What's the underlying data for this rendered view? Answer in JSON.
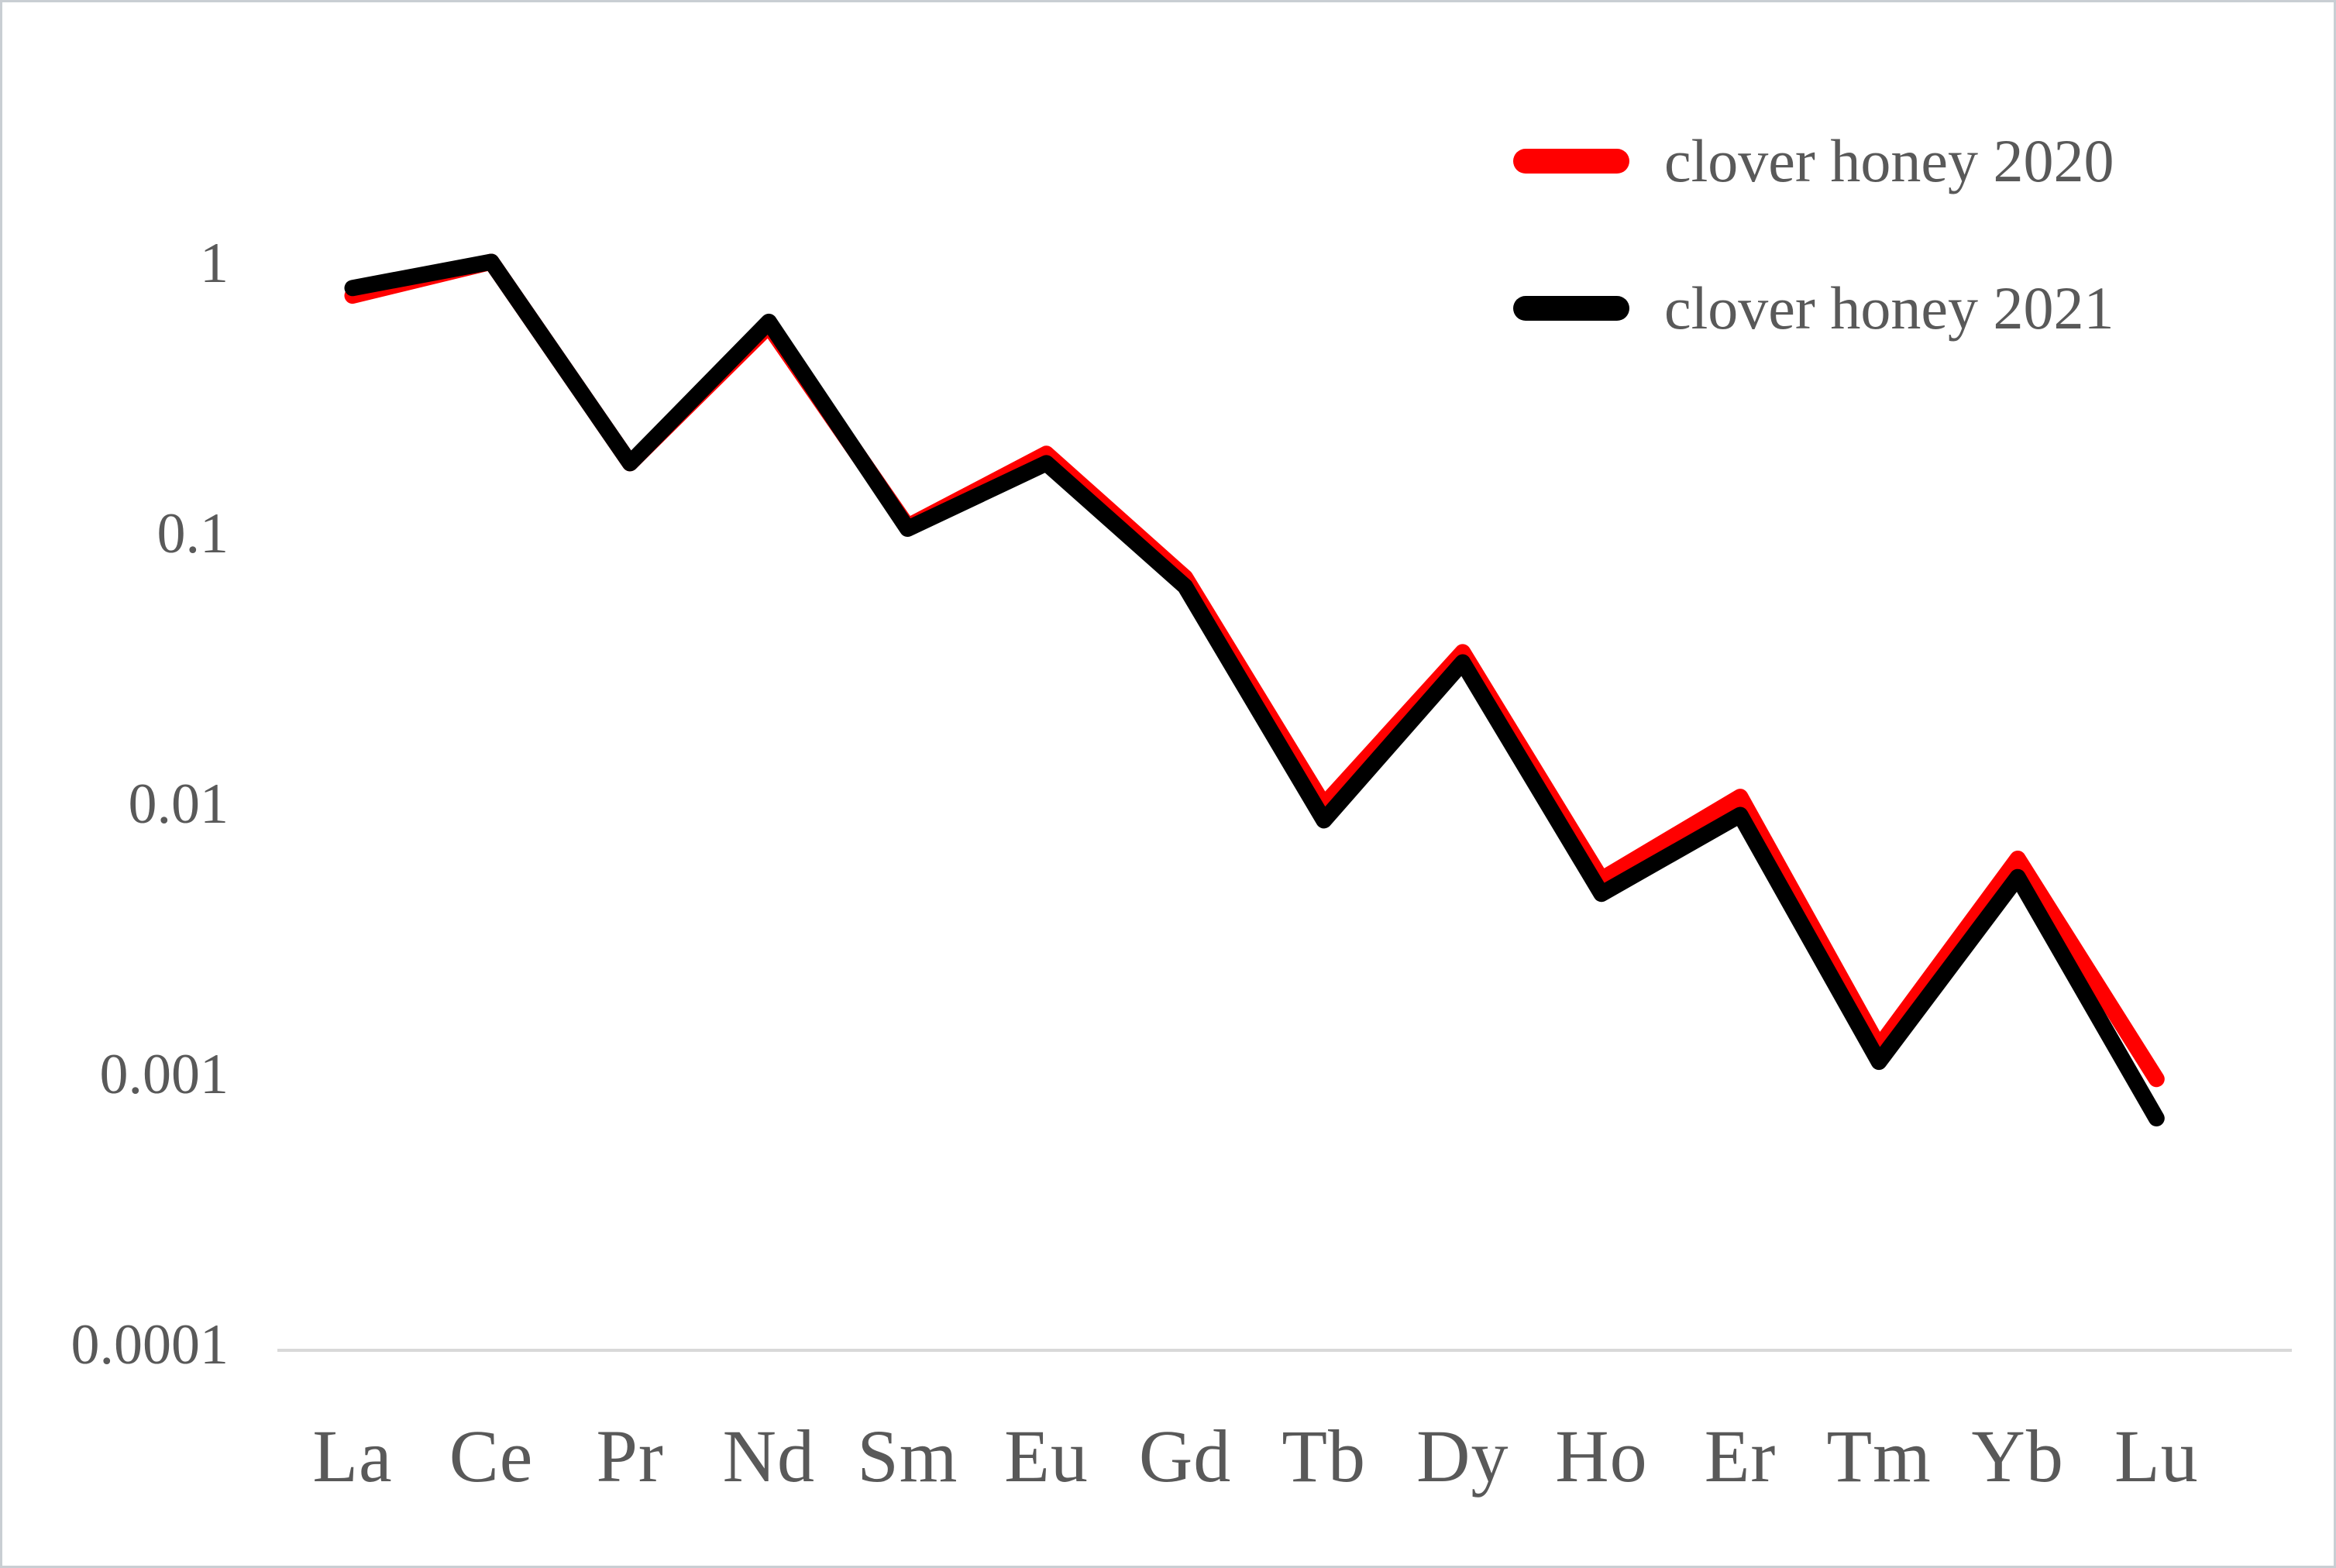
{
  "frame": {
    "background": "#ffffff",
    "border_color": "#c9ced3"
  },
  "legend": {
    "position": "top-right",
    "text_color": "#595959",
    "items": [
      {
        "label": "clover honey 2020",
        "color": "#ff0000"
      },
      {
        "label": "clover honey 2021",
        "color": "#000000"
      }
    ]
  },
  "chart_data": {
    "type": "line",
    "title": "",
    "xlabel": "",
    "ylabel": "",
    "categories": [
      "La",
      "Ce",
      "Pr",
      "Nd",
      "Sm",
      "Eu",
      "Gd",
      "Tb",
      "Dy",
      "Ho",
      "Er",
      "Tm",
      "Yb",
      "Lu"
    ],
    "series": [
      {
        "name": "clover honey 2020",
        "color": "#ff0000",
        "values": [
          0.75,
          1.0,
          0.18,
          0.58,
          0.105,
          0.195,
          0.068,
          0.0098,
          0.036,
          0.0052,
          0.0105,
          0.00125,
          0.0062,
          0.00095
        ]
      },
      {
        "name": "clover honey 2021",
        "color": "#000000",
        "values": [
          0.8,
          1.0,
          0.18,
          0.6,
          0.103,
          0.18,
          0.063,
          0.0086,
          0.033,
          0.0046,
          0.009,
          0.0011,
          0.0053,
          0.00068
        ]
      }
    ],
    "y_axis": {
      "scale": "log",
      "min": 0.0001,
      "max": 1,
      "ticks": [
        "1",
        "0.1",
        "0.01",
        "0.001",
        "0.0001"
      ],
      "tick_values": [
        1,
        0.1,
        0.01,
        0.001,
        0.0001
      ],
      "text_color": "#595959"
    },
    "x_axis": {
      "baseline_color": "#d9d9d9",
      "text_color": "#595959"
    },
    "grid": "off",
    "legend_position": "top-right",
    "line_width": 21
  }
}
